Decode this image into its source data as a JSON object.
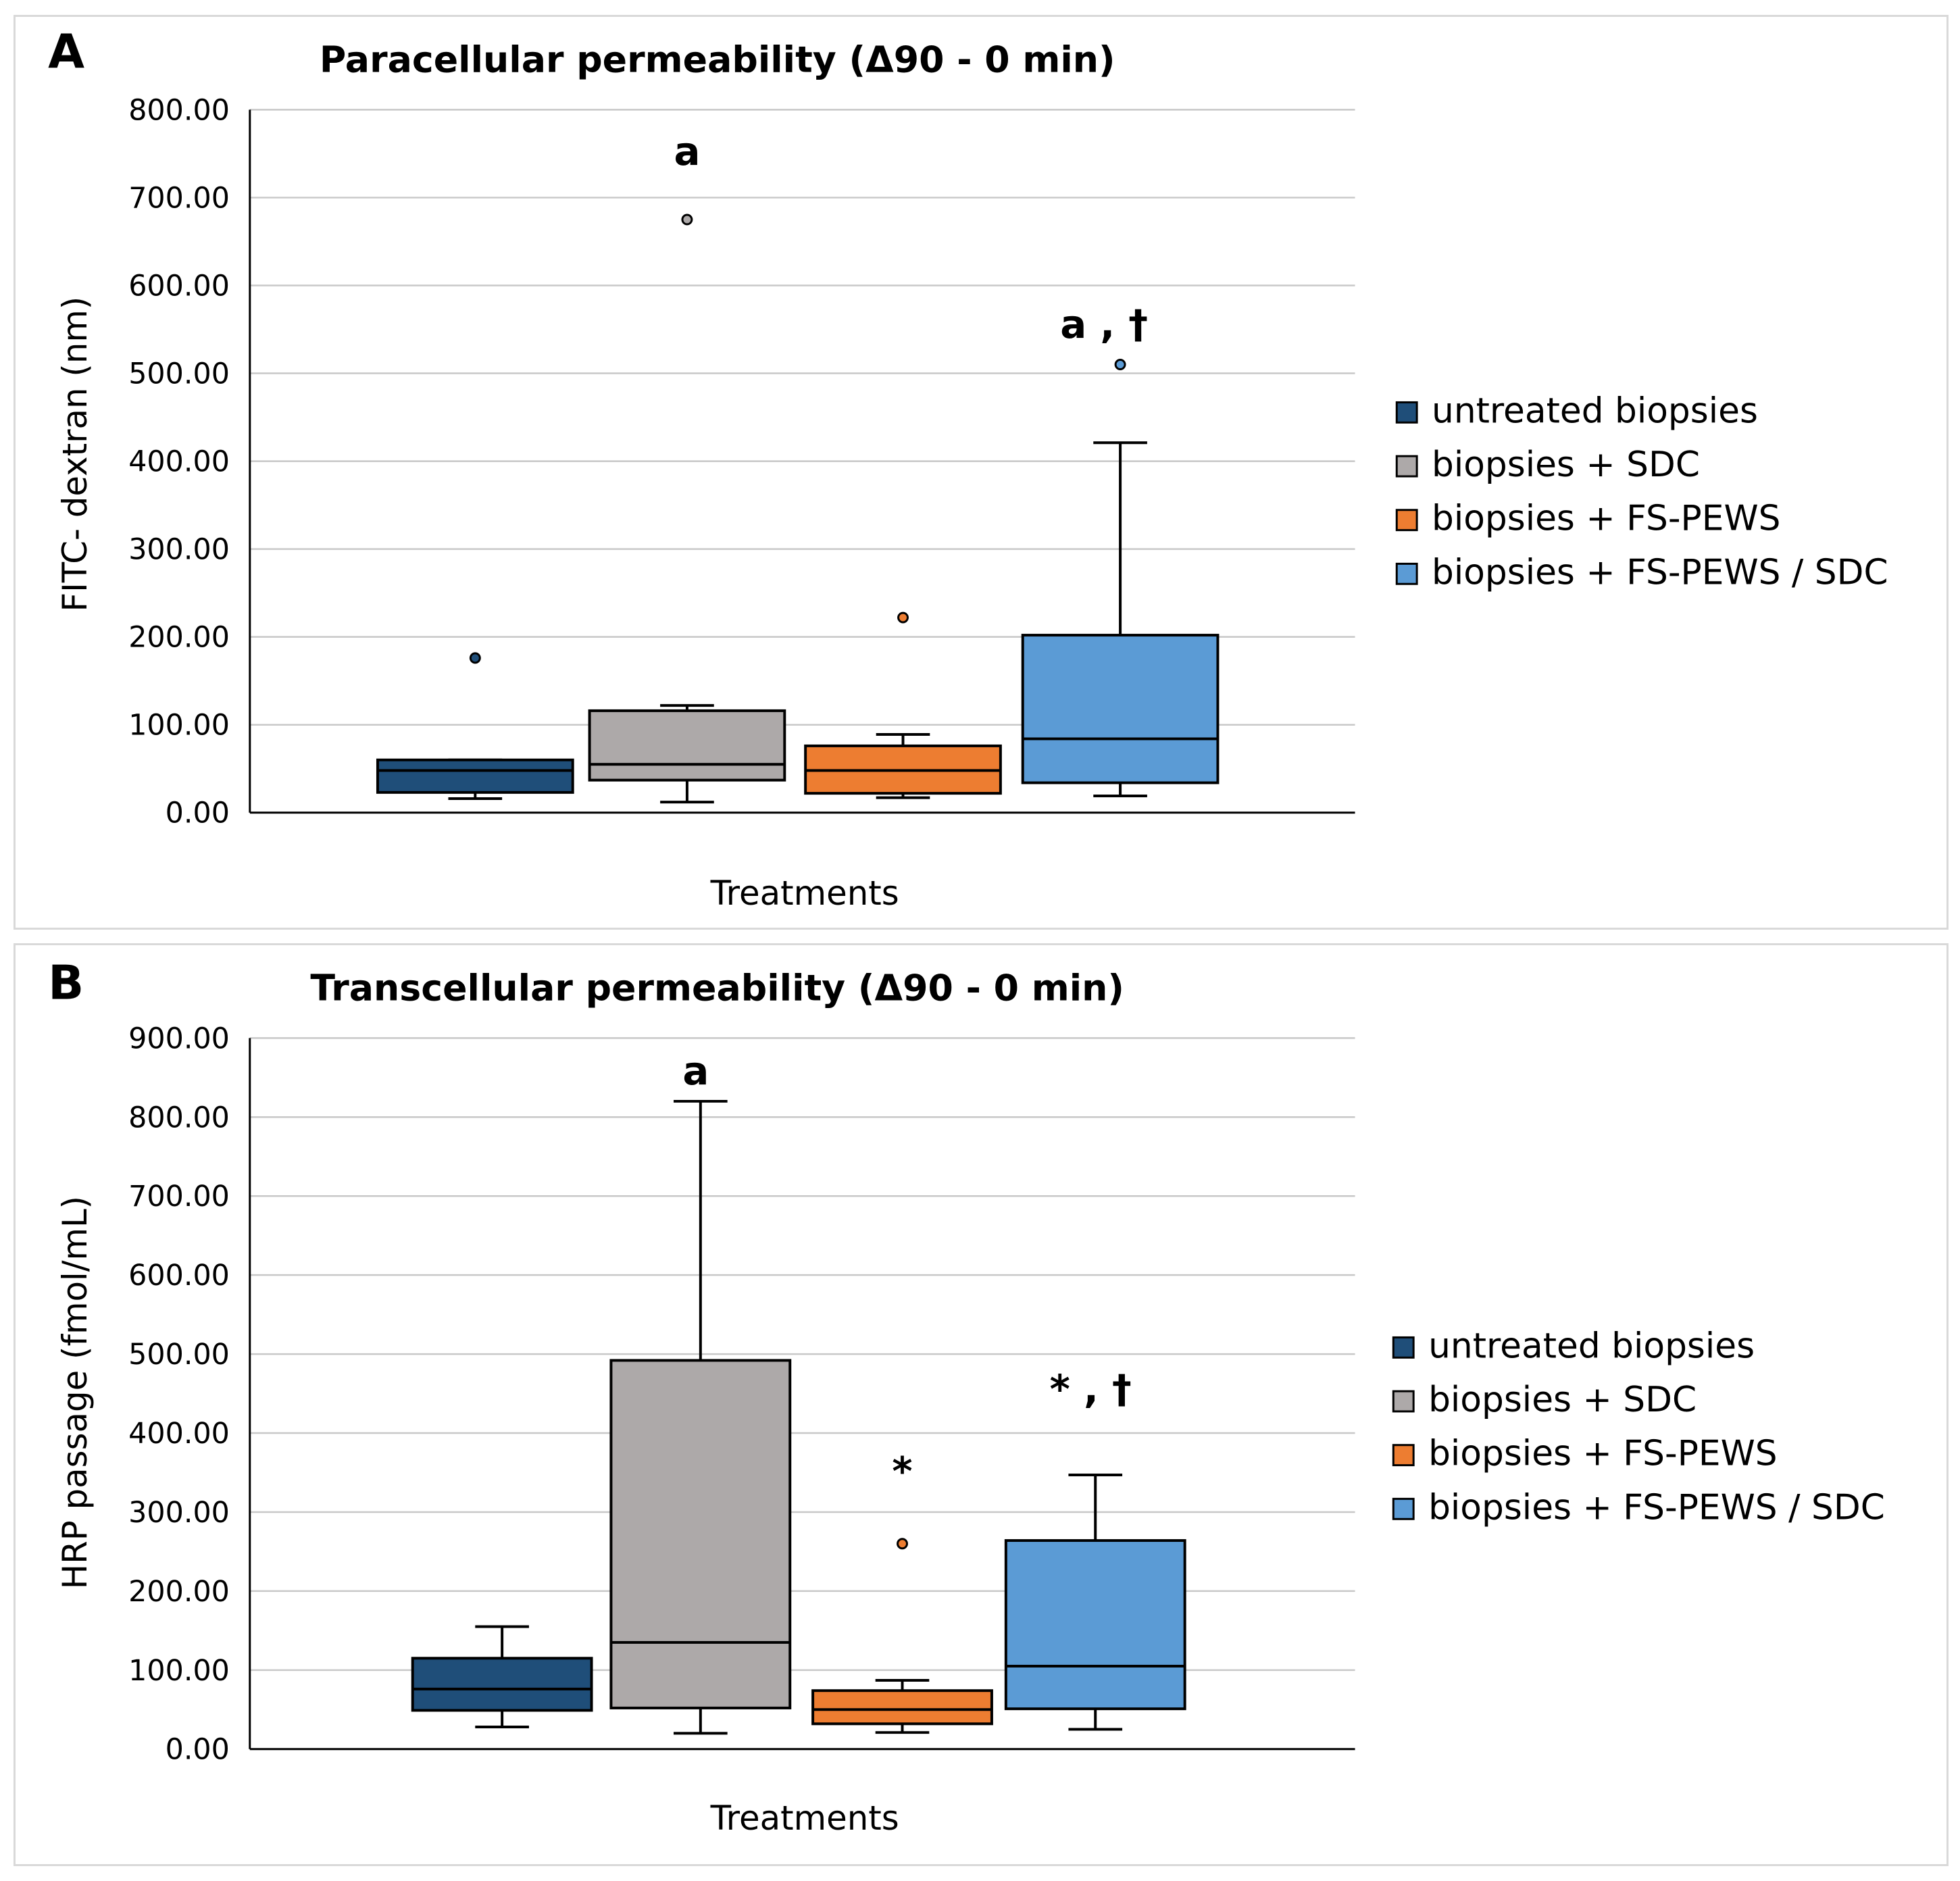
{
  "legend": [
    {
      "label": "untreated biopsies",
      "color": "#1f4e79"
    },
    {
      "label": "biopsies + SDC",
      "color": "#ada9a9"
    },
    {
      "label": "biopsies + FS-PEWS",
      "color": "#ed7d31"
    },
    {
      "label": "biopsies + FS-PEWS / SDC",
      "color": "#5b9bd5"
    }
  ],
  "chart_data": [
    {
      "panel": "A",
      "type": "box",
      "title": "Paracellular permeability (Δ90 - 0 min)",
      "xlabel": "Treatments",
      "ylabel": "FITC- dextran (nm)",
      "ylim": [
        0,
        800
      ],
      "yticks": [
        "0.00",
        "100.00",
        "200.00",
        "300.00",
        "400.00",
        "500.00",
        "600.00",
        "700.00",
        "800.00"
      ],
      "grid": true,
      "legend_position": "right",
      "series": [
        {
          "name": "untreated biopsies",
          "color": "#1f4e79",
          "whisker_low": 16,
          "q1": 23,
          "median": 48,
          "q3": 60,
          "whisker_high": 60,
          "outliers": [
            176
          ],
          "annotation": ""
        },
        {
          "name": "biopsies + SDC",
          "color": "#ada9a9",
          "whisker_low": 12,
          "q1": 37,
          "median": 55,
          "q3": 116,
          "whisker_high": 122,
          "outliers": [
            675
          ],
          "annotation": "a"
        },
        {
          "name": "biopsies + FS-PEWS",
          "color": "#ed7d31",
          "whisker_low": 17,
          "q1": 22,
          "median": 48,
          "q3": 76,
          "whisker_high": 89,
          "outliers": [
            222
          ],
          "annotation": ""
        },
        {
          "name": "biopsies + FS-PEWS / SDC",
          "color": "#5b9bd5",
          "whisker_low": 19,
          "q1": 34,
          "median": 84,
          "q3": 202,
          "whisker_high": 421,
          "outliers": [
            510
          ],
          "annotation": "a , †"
        }
      ]
    },
    {
      "panel": "B",
      "type": "box",
      "title": "Transcellular permeability (Δ90 - 0 min)",
      "xlabel": "Treatments",
      "ylabel": "HRP passage (fmol/mL)",
      "ylim": [
        0,
        900
      ],
      "yticks": [
        "0.00",
        "100.00",
        "200.00",
        "300.00",
        "400.00",
        "500.00",
        "600.00",
        "700.00",
        "800.00",
        "900.00"
      ],
      "grid": true,
      "legend_position": "right",
      "series": [
        {
          "name": "untreated biopsies",
          "color": "#1f4e79",
          "whisker_low": 28,
          "q1": 49,
          "median": 76,
          "q3": 115,
          "whisker_high": 155,
          "outliers": [],
          "annotation": ""
        },
        {
          "name": "biopsies + SDC",
          "color": "#ada9a9",
          "whisker_low": 20,
          "q1": 52,
          "median": 135,
          "q3": 492,
          "whisker_high": 820,
          "outliers": [],
          "annotation": "a"
        },
        {
          "name": "biopsies + FS-PEWS",
          "color": "#ed7d31",
          "whisker_low": 21,
          "q1": 32,
          "median": 50,
          "q3": 74,
          "whisker_high": 87,
          "outliers": [
            260
          ],
          "annotation": "*"
        },
        {
          "name": "biopsies + FS-PEWS / SDC",
          "color": "#5b9bd5",
          "whisker_low": 25,
          "q1": 51,
          "median": 105,
          "q3": 264,
          "whisker_high": 347,
          "outliers": [],
          "annotation": "* , †"
        }
      ]
    }
  ]
}
